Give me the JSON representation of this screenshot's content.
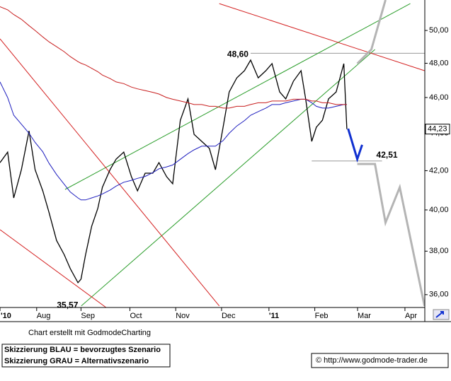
{
  "chart_data": {
    "type": "line",
    "log_scale": true,
    "x": [
      7,
      12,
      16,
      21,
      26,
      30,
      35,
      39,
      44,
      49,
      53,
      58,
      60,
      63,
      67,
      71,
      74,
      79,
      83,
      88,
      93,
      97,
      102,
      107,
      111,
      116,
      120,
      125,
      130,
      134,
      139,
      144,
      148,
      153,
      157,
      162,
      167,
      171,
      176,
      181,
      185,
      190,
      194,
      199,
      204,
      207,
      211,
      214,
      218,
      222,
      227,
      232,
      234
    ],
    "series": [
      {
        "color": "#000000",
        "values": [
          42.42,
          42.98,
          40.6,
          42.05,
          44.13,
          42.05,
          40.96,
          39.89,
          38.51,
          37.84,
          37.18,
          36.54,
          36.7,
          37.84,
          39.2,
          40.07,
          41.14,
          42.05,
          42.61,
          42.98,
          41.69,
          40.96,
          41.87,
          41.87,
          42.42,
          41.69,
          41.32,
          44.72,
          45.92,
          43.94,
          43.56,
          43.18,
          42.05,
          44.33,
          46.32,
          47.14,
          47.56,
          48.19,
          47.14,
          47.56,
          47.98,
          46.32,
          45.92,
          46.94,
          47.56,
          45.92,
          43.56,
          44.33,
          44.72,
          45.92,
          46.32,
          47.98,
          44.23
        ]
      },
      {
        "color": "#1f1fbf",
        "values": [
          46.9,
          46.0,
          45.0,
          44.5,
          44.0,
          43.5,
          43.0,
          42.4,
          41.8,
          41.3,
          40.9,
          40.6,
          40.5,
          40.5,
          40.6,
          40.7,
          40.8,
          41.0,
          41.2,
          41.4,
          41.5,
          41.6,
          41.7,
          41.9,
          42.1,
          42.2,
          42.3,
          42.6,
          42.9,
          43.1,
          43.3,
          43.3,
          43.3,
          43.6,
          44.0,
          44.4,
          44.7,
          45.0,
          45.2,
          45.4,
          45.6,
          45.6,
          45.7,
          45.8,
          45.9,
          45.9,
          45.7,
          45.5,
          45.4,
          45.4,
          45.5,
          45.6,
          45.6
        ]
      },
      {
        "color": "#c81e1e",
        "values": [
          51.5,
          51.3,
          51.0,
          50.7,
          50.3,
          50.0,
          49.6,
          49.3,
          49.0,
          48.7,
          48.4,
          48.1,
          48.0,
          47.9,
          47.7,
          47.5,
          47.3,
          47.1,
          46.9,
          46.8,
          46.6,
          46.5,
          46.4,
          46.3,
          46.2,
          46.0,
          45.9,
          45.8,
          45.7,
          45.6,
          45.6,
          45.5,
          45.5,
          45.4,
          45.4,
          45.5,
          45.5,
          45.6,
          45.7,
          45.7,
          45.8,
          45.8,
          45.8,
          45.9,
          45.9,
          45.9,
          45.8,
          45.8,
          45.7,
          45.7,
          45.6,
          45.6,
          45.6
        ]
      }
    ],
    "lines": [
      {
        "color": "#2a9d2a",
        "x": [
          49.6,
          275.5
        ],
        "y": [
          41.03,
          51.7
        ]
      },
      {
        "color": "#2a9d2a",
        "x": [
          60.2,
          252.4
        ],
        "y": [
          35.5,
          48.83
        ]
      },
      {
        "color": "#d42020",
        "x": [
          150.5,
          284.8
        ],
        "y": [
          51.7,
          47.56
        ]
      },
      {
        "color": "#d42020",
        "x": [
          7,
          150.5
        ],
        "y": [
          49.48,
          35.5
        ]
      },
      {
        "color": "#d42020",
        "x": [
          7,
          76.4
        ],
        "y": [
          39.03,
          35.43
        ]
      },
      {
        "color": "#1030d0",
        "x": [
          234.8,
          240.8,
          244
        ],
        "y": [
          44.25,
          42.61,
          43.37
        ]
      },
      {
        "color": "#b4b4b4",
        "x": [
          240.8,
          252.4,
          259.3,
          268.6,
          284.8
        ],
        "y": [
          42.35,
          42.35,
          39.37,
          41.14,
          35.5
        ]
      },
      {
        "color": "#b4b4b4",
        "x": [
          240.8,
          250,
          259.3
        ],
        "y": [
          47.98,
          48.83,
          51.93
        ]
      }
    ],
    "levels": [
      {
        "label": "48,60",
        "value": 48.6,
        "x": [
          171,
          285
        ]
      },
      {
        "label": "42,51",
        "value": 42.51,
        "x": [
          211,
          257
        ]
      }
    ],
    "low_label": {
      "label": "35,57",
      "value": 35.57,
      "x": 60
    },
    "last_price": {
      "label": "44,23",
      "value": 44.23
    },
    "xlim": [
      7,
      285
    ],
    "xticks": [
      {
        "value": 7,
        "label": "'10"
      },
      {
        "value": 31,
        "label": "Aug"
      },
      {
        "value": 60,
        "label": "Sep"
      },
      {
        "value": 92,
        "label": "Oct"
      },
      {
        "value": 122,
        "label": "Nov"
      },
      {
        "value": 152,
        "label": "Dec"
      },
      {
        "value": 183,
        "label": "'11"
      },
      {
        "value": 213,
        "label": "Feb"
      },
      {
        "value": 241,
        "label": "Mar"
      },
      {
        "value": 272,
        "label": "Apr"
      }
    ],
    "ylim": [
      35.43,
      51.93
    ],
    "yticks": [
      {
        "value": 36,
        "label": "36,00"
      },
      {
        "value": 38,
        "label": "38,00"
      },
      {
        "value": 40,
        "label": "40,00"
      },
      {
        "value": 42,
        "label": "42,00"
      },
      {
        "value": 44,
        "label": "44,00"
      },
      {
        "value": 46,
        "label": "46,00"
      },
      {
        "value": 48,
        "label": "48,00"
      },
      {
        "value": 50,
        "label": "50,00"
      }
    ],
    "credit": "Chart erstellt mit GodmodeCharting",
    "notes": [
      "Skizzierung BLAU = bevorzugtes Szenario",
      "Skizzierung GRAU = Alternativszenario"
    ],
    "source": "© http://www.godmode-trader.de"
  }
}
